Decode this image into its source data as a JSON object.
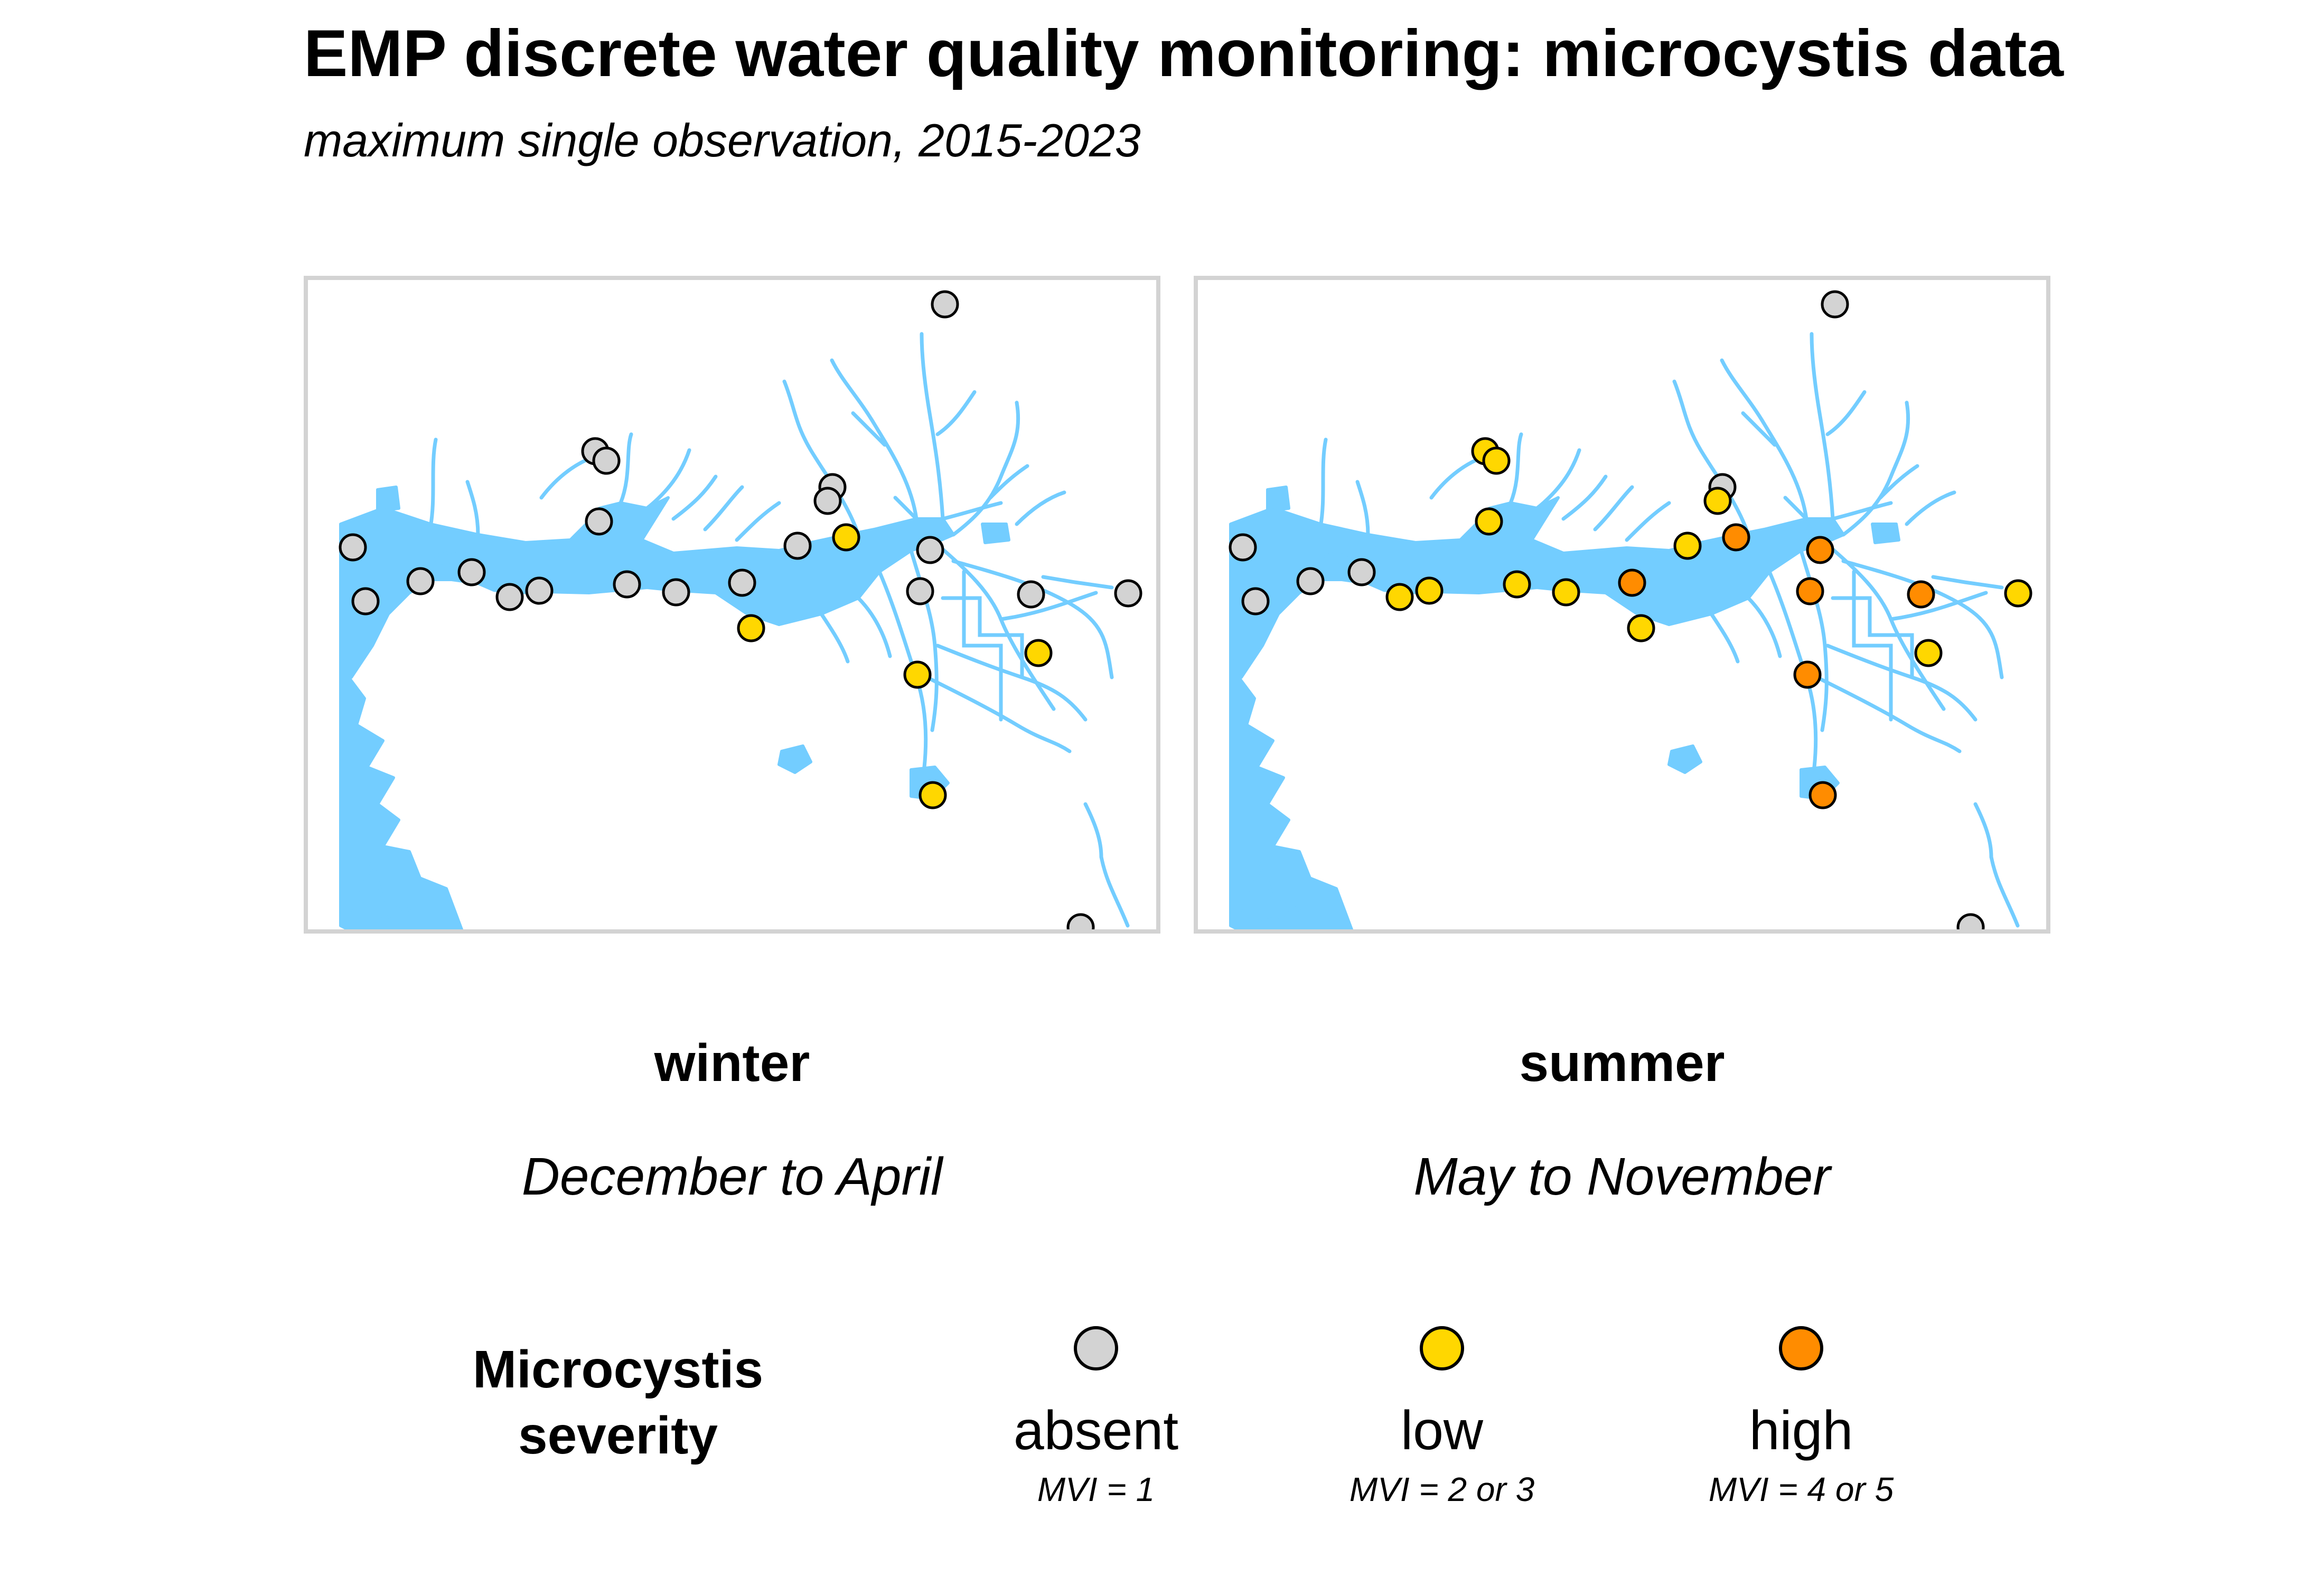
{
  "title": "EMP discrete water quality monitoring: microcystis data",
  "subtitle": "maximum single observation, 2015-2023",
  "colors": {
    "absent": "#d3d3d3",
    "low": "#ffd700",
    "high": "#ff8c00",
    "water": "#73cdff",
    "frame": "#d3d3d3"
  },
  "panels": [
    {
      "id": "winter",
      "label": "winter",
      "sublabel": "December to April"
    },
    {
      "id": "summer",
      "label": "summer",
      "sublabel": "May to November"
    }
  ],
  "stations": {
    "winter": [
      "absent",
      "absent",
      "absent",
      "absent",
      "absent",
      "absent",
      "absent",
      "absent",
      "absent",
      "absent",
      "absent",
      "absent",
      "absent",
      "low",
      "absent",
      "absent",
      "absent",
      "low",
      "absent",
      "absent",
      "absent",
      "low",
      "low",
      "low",
      "absent",
      "absent"
    ],
    "summer": [
      "absent",
      "absent",
      "absent",
      "absent",
      "absent",
      "low",
      "low",
      "low",
      "low",
      "low",
      "low",
      "low",
      "high",
      "low",
      "low",
      "absent",
      "low",
      "high",
      "high",
      "high",
      "high",
      "high",
      "high",
      "low",
      "absent",
      "low"
    ]
  },
  "legend": {
    "title_line1": "Microcystis",
    "title_line2": "severity",
    "items": [
      {
        "key": "absent",
        "label": "absent",
        "note": "MVI = 1"
      },
      {
        "key": "low",
        "label": "low",
        "note": "MVI = 2 or 3"
      },
      {
        "key": "high",
        "label": "high",
        "note": "MVI = 4 or 5"
      }
    ]
  }
}
